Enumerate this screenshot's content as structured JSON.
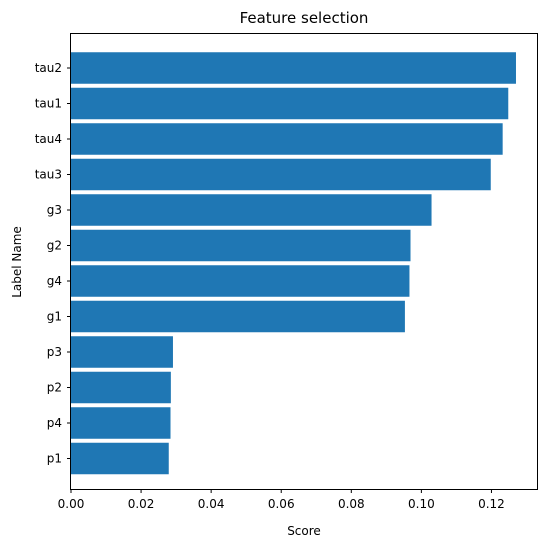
{
  "chart_data": {
    "type": "bar",
    "orientation": "horizontal",
    "title": "Feature selection",
    "xlabel": "Score",
    "ylabel": "Label Name",
    "categories": [
      "tau2",
      "tau1",
      "tau4",
      "tau3",
      "g3",
      "g2",
      "g4",
      "g1",
      "p3",
      "p2",
      "p4",
      "p1"
    ],
    "values": [
      0.127,
      0.1248,
      0.1232,
      0.1198,
      0.1029,
      0.0969,
      0.0966,
      0.0953,
      0.0291,
      0.0285,
      0.0284,
      0.0279
    ],
    "xlim": [
      0,
      0.133
    ],
    "xticks": [
      "0.00",
      "0.02",
      "0.04",
      "0.06",
      "0.08",
      "0.10",
      "0.12"
    ],
    "xtick_values": [
      0,
      0.02,
      0.04,
      0.06,
      0.08,
      0.1,
      0.12
    ],
    "bar_color": "#1f77b4",
    "grid": false,
    "legend": "none"
  }
}
